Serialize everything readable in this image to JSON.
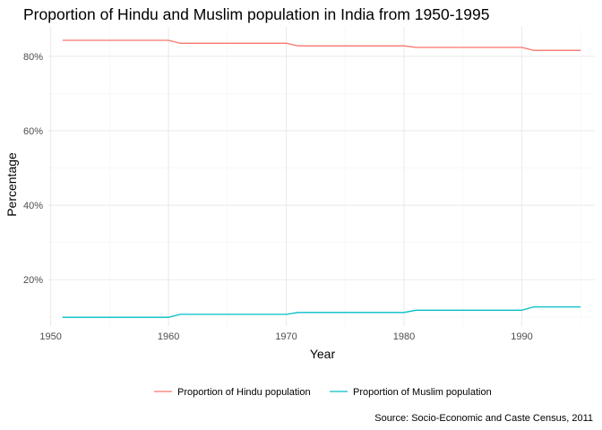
{
  "chart_data": {
    "type": "line",
    "title": "Proportion of Hindu and Muslim population in India  from 1950-1995",
    "xlabel": "Year",
    "ylabel": "Percentage",
    "caption": "Source: Socio-Economic and Caste Census, 2011",
    "xlim": [
      1949.8,
      1996.2
    ],
    "ylim": [
      0.0755,
      0.879
    ],
    "x_ticks": [
      1950,
      1960,
      1970,
      1980,
      1990
    ],
    "x_tick_labels": [
      "1950",
      "1960",
      "1970",
      "1980",
      "1990"
    ],
    "y_ticks": [
      0.2,
      0.4,
      0.6,
      0.8
    ],
    "y_tick_labels": [
      "20%",
      "40%",
      "60%",
      "80%"
    ],
    "grid": true,
    "legend_position": "bottom",
    "series": [
      {
        "name": "Proportion of Hindu population",
        "color": "#F8766D",
        "x": [
          1951,
          1952,
          1953,
          1954,
          1955,
          1956,
          1957,
          1958,
          1959,
          1960,
          1961,
          1962,
          1963,
          1964,
          1965,
          1966,
          1967,
          1968,
          1969,
          1970,
          1971,
          1972,
          1973,
          1974,
          1975,
          1976,
          1977,
          1978,
          1979,
          1980,
          1981,
          1982,
          1983,
          1984,
          1985,
          1986,
          1987,
          1988,
          1989,
          1990,
          1991,
          1992,
          1993,
          1994,
          1995
        ],
        "values": [
          0.843,
          0.843,
          0.843,
          0.843,
          0.843,
          0.843,
          0.843,
          0.843,
          0.843,
          0.843,
          0.835,
          0.835,
          0.835,
          0.835,
          0.835,
          0.835,
          0.835,
          0.835,
          0.835,
          0.835,
          0.828,
          0.828,
          0.828,
          0.828,
          0.828,
          0.828,
          0.828,
          0.828,
          0.828,
          0.828,
          0.824,
          0.824,
          0.824,
          0.824,
          0.824,
          0.824,
          0.824,
          0.824,
          0.824,
          0.824,
          0.816,
          0.816,
          0.816,
          0.816,
          0.816
        ]
      },
      {
        "name": "Proportion of Muslim population",
        "color": "#00BFC4",
        "x": [
          1951,
          1952,
          1953,
          1954,
          1955,
          1956,
          1957,
          1958,
          1959,
          1960,
          1961,
          1962,
          1963,
          1964,
          1965,
          1966,
          1967,
          1968,
          1969,
          1970,
          1971,
          1972,
          1973,
          1974,
          1975,
          1976,
          1977,
          1978,
          1979,
          1980,
          1981,
          1982,
          1983,
          1984,
          1985,
          1986,
          1987,
          1988,
          1989,
          1990,
          1991,
          1992,
          1993,
          1994,
          1995
        ],
        "values": [
          0.099,
          0.099,
          0.099,
          0.099,
          0.099,
          0.099,
          0.099,
          0.099,
          0.099,
          0.099,
          0.107,
          0.107,
          0.107,
          0.107,
          0.107,
          0.107,
          0.107,
          0.107,
          0.107,
          0.107,
          0.112,
          0.112,
          0.112,
          0.112,
          0.112,
          0.112,
          0.112,
          0.112,
          0.112,
          0.112,
          0.118,
          0.118,
          0.118,
          0.118,
          0.118,
          0.118,
          0.118,
          0.118,
          0.118,
          0.118,
          0.127,
          0.127,
          0.127,
          0.127,
          0.127
        ]
      }
    ]
  }
}
